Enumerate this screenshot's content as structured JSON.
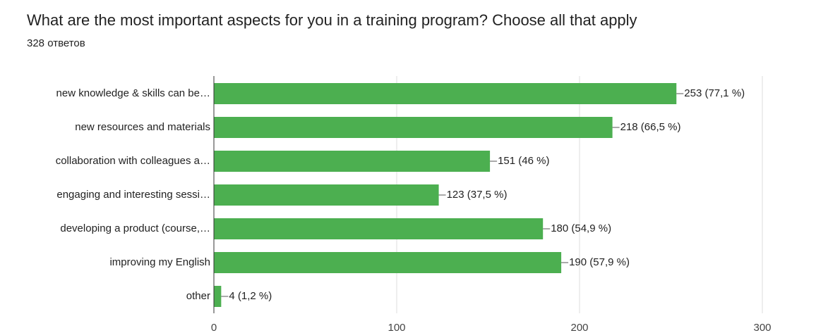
{
  "chart_data": {
    "type": "bar",
    "orientation": "horizontal",
    "title": "What are the most important aspects for you in a training program? Choose all that apply",
    "subtitle": "328 ответов",
    "categories": [
      "new knowledge & skills can be…",
      "new resources and materials",
      "collaboration with colleagues a…",
      "engaging and interesting sessi…",
      "developing a product (course,…",
      "improving my English",
      "other"
    ],
    "values": [
      253,
      218,
      151,
      123,
      180,
      190,
      4
    ],
    "value_labels": [
      "253 (77,1 %)",
      "218 (66,5 %)",
      "151 (46 %)",
      "123 (37,5 %)",
      "180 (54,9 %)",
      "190 (57,9 %)",
      "4 (1,2 %)"
    ],
    "color": "#4caf50",
    "xlim": [
      0,
      300
    ],
    "xticks": [
      0,
      100,
      200,
      300
    ],
    "grid": true
  }
}
